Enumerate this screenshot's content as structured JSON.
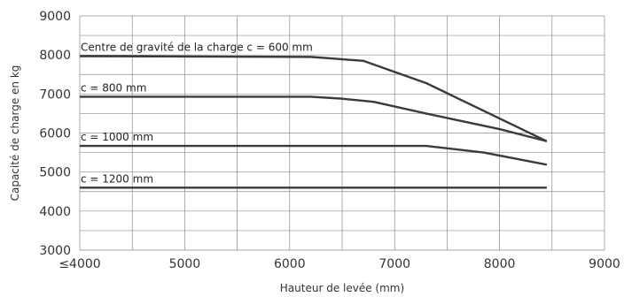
{
  "chart_data": {
    "type": "line",
    "xlabel": "Hauteur de levée (mm)",
    "ylabel": "Capacité de charge en kg",
    "xlim": [
      4000,
      9000
    ],
    "ylim": [
      3000,
      9000
    ],
    "x_ticks": [
      4000,
      5000,
      6000,
      7000,
      8000,
      9000
    ],
    "x_tick_labels": [
      "≤4000",
      "5000",
      "6000",
      "7000",
      "8000",
      "9000"
    ],
    "y_ticks": [
      3000,
      4000,
      5000,
      6000,
      7000,
      8000,
      9000
    ],
    "y_tick_labels": [
      "3000",
      "4000",
      "5000",
      "6000",
      "7000",
      "8000",
      "9000"
    ],
    "grid": true,
    "series": [
      {
        "name": "Centre de gravité de la charge c = 600 mm",
        "x": [
          4000,
          6200,
          6700,
          7300,
          8450
        ],
        "y": [
          7970,
          7950,
          7850,
          7280,
          5790
        ]
      },
      {
        "name": "c = 800 mm",
        "x": [
          4000,
          6200,
          6500,
          6800,
          7300,
          8000,
          8450
        ],
        "y": [
          6930,
          6930,
          6880,
          6800,
          6500,
          6100,
          5790
        ]
      },
      {
        "name": "c = 1000 mm",
        "x": [
          4000,
          7300,
          7850,
          8450
        ],
        "y": [
          5670,
          5670,
          5500,
          5190
        ]
      },
      {
        "name": "c = 1200 mm",
        "x": [
          4000,
          8450
        ],
        "y": [
          4600,
          4600
        ]
      }
    ]
  }
}
